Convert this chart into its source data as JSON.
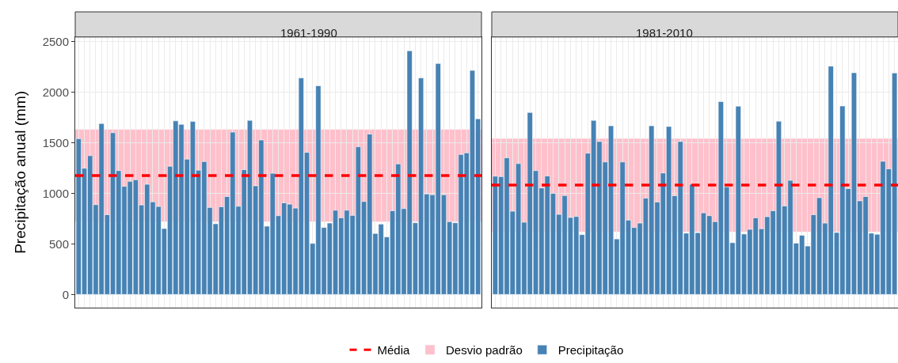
{
  "chart_data": [
    {
      "type": "bar",
      "title": "1961-1990",
      "ylabel": "Precipitação anual (mm)",
      "categories": [
        null,
        null,
        null,
        null,
        null,
        null,
        null,
        null,
        null,
        null,
        null,
        null,
        null,
        null,
        null,
        null,
        null,
        null,
        null,
        null,
        null,
        null,
        null,
        null,
        null,
        null,
        null,
        null,
        null,
        null,
        null,
        null,
        null,
        null,
        null,
        null,
        null,
        null,
        null,
        null,
        null,
        null,
        null,
        null,
        null,
        null,
        null,
        null,
        null,
        null,
        null,
        null,
        null,
        null,
        null,
        null,
        null,
        null,
        null,
        null,
        null,
        null,
        null,
        null,
        null,
        null,
        null,
        null,
        null,
        null,
        null
      ],
      "series": [
        {
          "name": "Precipitação",
          "color": "#4682b4",
          "values": [
            1540,
            1248,
            1372,
            888,
            1690,
            789,
            1599,
            1224,
            1069,
            1118,
            1134,
            885,
            1089,
            916,
            870,
            652,
            1268,
            1716,
            1682,
            1338,
            1710,
            1229,
            1314,
            860,
            699,
            867,
            968,
            1605,
            872,
            1234,
            1721,
            1074,
            1527,
            675,
            1198,
            779,
            906,
            893,
            854,
            2140,
            1405,
            505,
            2063,
            662,
            706,
            833,
            758,
            833,
            782,
            1460,
            919,
            1586,
            603,
            696,
            569,
            828,
            1291,
            849,
            2409,
            709,
            2140,
            994,
            986,
            2283,
            986,
            720,
            709,
            1384,
            1400,
            2215,
            1737
          ]
        }
      ],
      "ref_lines": [
        {
          "axis": "y",
          "value": 1175,
          "label": "Média",
          "color": "#ff0000",
          "line_style": "dashed"
        }
      ],
      "bands": [
        {
          "axis": "y",
          "from": 720,
          "to": 1630,
          "label": "Desvio padrão",
          "color": "#ffc0cb"
        }
      ],
      "ylim": [
        -130,
        2545
      ],
      "yticks": [
        0,
        500,
        1000,
        1500,
        2000,
        2500
      ],
      "grid": true,
      "legend": "bottom",
      "tick_labels": "y"
    },
    {
      "type": "bar",
      "title": "1981-2010",
      "categories": [
        null,
        null,
        null,
        null,
        null,
        null,
        null,
        null,
        null,
        null,
        null,
        null,
        null,
        null,
        null,
        null,
        null,
        null,
        null,
        null,
        null,
        null,
        null,
        null,
        null,
        null,
        null,
        null,
        null,
        null,
        null,
        null,
        null,
        null,
        null,
        null,
        null,
        null,
        null,
        null,
        null,
        null,
        null,
        null,
        null,
        null,
        null,
        null,
        null,
        null,
        null,
        null,
        null,
        null,
        null,
        null,
        null,
        null,
        null,
        null,
        null,
        null,
        null,
        null,
        null,
        null,
        null,
        null,
        null,
        null
      ],
      "series": [
        {
          "color": "#4682b4",
          "values": [
            1170,
            1165,
            1351,
            823,
            1294,
            714,
            1799,
            1224,
            1053,
            1172,
            999,
            792,
            978,
            761,
            771,
            592,
            1397,
            1721,
            1512,
            1310,
            1667,
            549,
            1310,
            735,
            662,
            706,
            952,
            1667,
            914,
            1201,
            1661,
            976,
            1512,
            606,
            1090,
            611,
            807,
            779,
            720,
            1907,
            1064,
            512,
            1861,
            598,
            644,
            758,
            650,
            769,
            828,
            1713,
            875,
            1128,
            507,
            585,
            479,
            789,
            957,
            706,
            2257,
            613,
            1863,
            1046,
            2192,
            926,
            968,
            606,
            595,
            1317,
            1242,
            2189
          ]
        }
      ],
      "ref_lines": [
        {
          "axis": "y",
          "value": 1082,
          "color": "#ff0000",
          "line_style": "dashed"
        }
      ],
      "bands": [
        {
          "axis": "y",
          "from": 621,
          "to": 1540,
          "color": "#ffc0cb"
        }
      ],
      "ylim": [
        -130,
        2545
      ],
      "yticks": [
        0,
        500,
        1000,
        1500,
        2000,
        2500
      ],
      "grid": true,
      "tick_labels": false
    }
  ]
}
